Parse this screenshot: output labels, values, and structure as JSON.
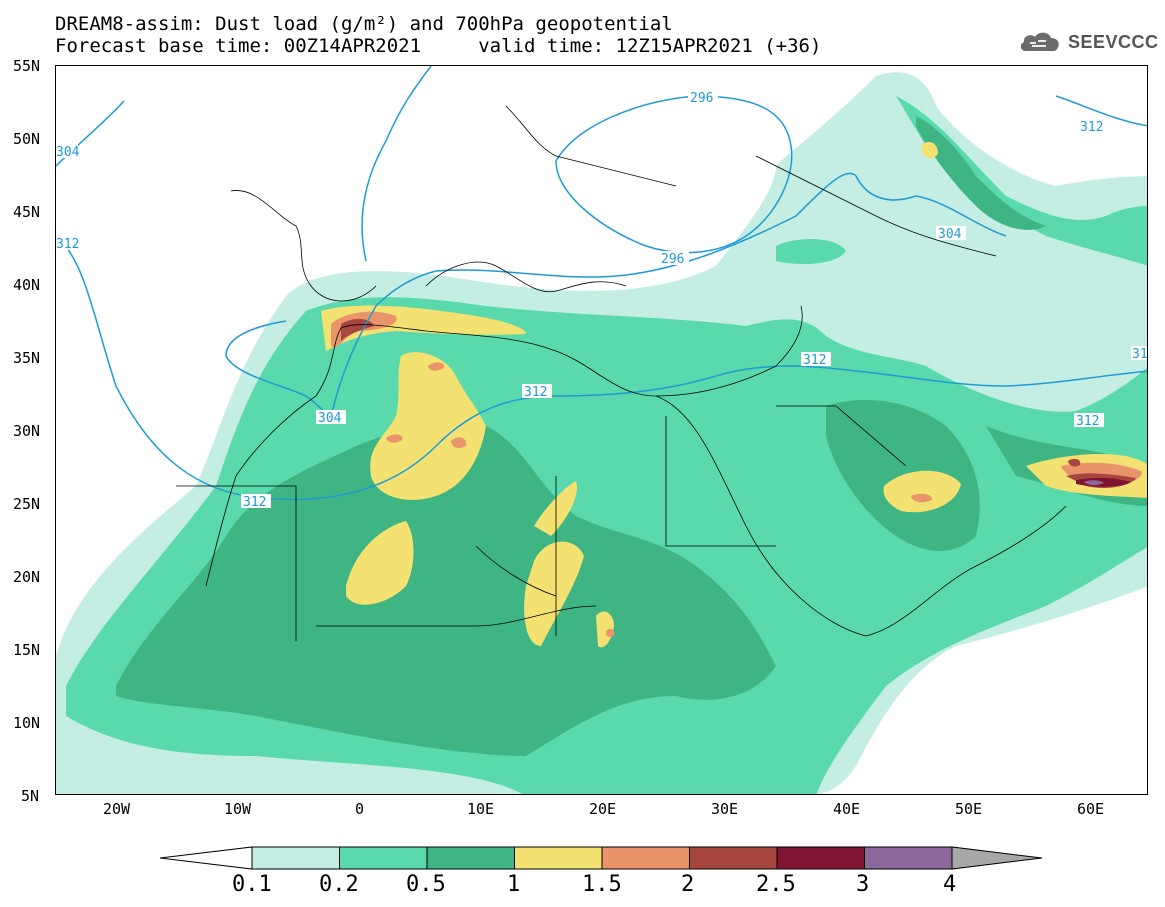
{
  "title": {
    "line1": "DREAM8-assim: Dust load (g/m²) and 700hPa geopotential",
    "line2": "Forecast base time: 00Z14APR2021     valid time: 12Z15APR2021 (+36)"
  },
  "logo": {
    "text": "SEEVCCC",
    "icon": "cloud-icon"
  },
  "map": {
    "lat_labels": [
      "55N",
      "50N",
      "45N",
      "40N",
      "35N",
      "30N",
      "25N",
      "20N",
      "15N",
      "10N",
      "5N"
    ],
    "lon_labels": [
      "20W",
      "10W",
      "0",
      "10E",
      "20E",
      "30E",
      "40E",
      "50E",
      "60E"
    ],
    "contour_labels": [
      "304",
      "296",
      "312",
      "312",
      "296",
      "304",
      "312",
      "304",
      "312",
      "312",
      "312",
      "31"
    ],
    "contour_color": "#1e9bd7"
  },
  "colorbar": {
    "labels": [
      "0.1",
      "0.2",
      "0.5",
      "1",
      "1.5",
      "2",
      "2.5",
      "3",
      "4"
    ],
    "colors": [
      "#c4eee3",
      "#5ad9ad",
      "#3fb584",
      "#f3e271",
      "#e9946b",
      "#a7463f",
      "#7e1431",
      "#8c679b",
      "#a8a8a8"
    ]
  }
}
